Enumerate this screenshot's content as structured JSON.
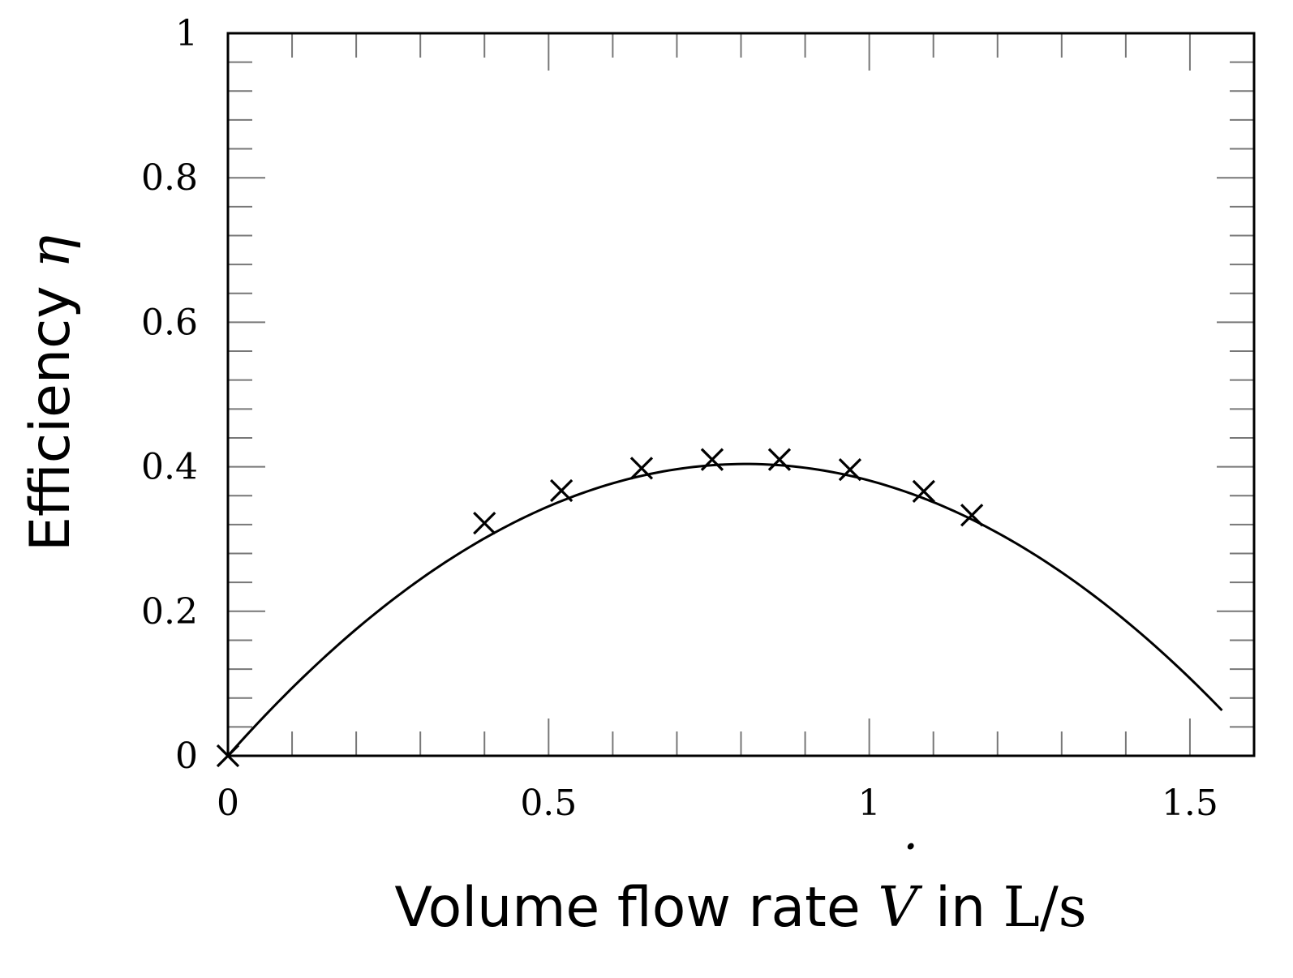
{
  "chart_data": {
    "type": "scatter",
    "xlabel": {
      "text": "Volume flow rate",
      "symbol": "V",
      "symbol_accent": "˙",
      "connector": "in",
      "unit": "L/s"
    },
    "ylabel": {
      "text": "Efficiency",
      "symbol": "η"
    },
    "xlim": [
      0,
      1.6
    ],
    "ylim": [
      0,
      1
    ],
    "x_ticks": [
      {
        "value": 0,
        "label": "0"
      },
      {
        "value": 0.5,
        "label": "0.5"
      },
      {
        "value": 1,
        "label": "1"
      },
      {
        "value": 1.5,
        "label": "1.5"
      }
    ],
    "y_ticks": [
      {
        "value": 0,
        "label": "0"
      },
      {
        "value": 0.2,
        "label": "0.2"
      },
      {
        "value": 0.4,
        "label": "0.4"
      },
      {
        "value": 0.6,
        "label": "0.6"
      },
      {
        "value": 0.8,
        "label": "0.8"
      },
      {
        "value": 1,
        "label": "1"
      }
    ],
    "x_minor_step": 0.1,
    "y_minor_step": 0.04,
    "grid": false,
    "series": [
      {
        "kind": "markers",
        "marker": "cross",
        "color": "#000000",
        "x": [
          0,
          0.4,
          0.52,
          0.645,
          0.755,
          0.86,
          0.97,
          1.085,
          1.16
        ],
        "y": [
          0,
          0.322,
          0.367,
          0.398,
          0.41,
          0.41,
          0.396,
          0.366,
          0.333
        ]
      },
      {
        "kind": "fit-curve",
        "model": "quadratic",
        "color": "#000000",
        "coefficients": {
          "a": -0.619,
          "b": 1.0,
          "c": 0
        },
        "x_range": [
          0,
          1.55
        ]
      }
    ]
  }
}
